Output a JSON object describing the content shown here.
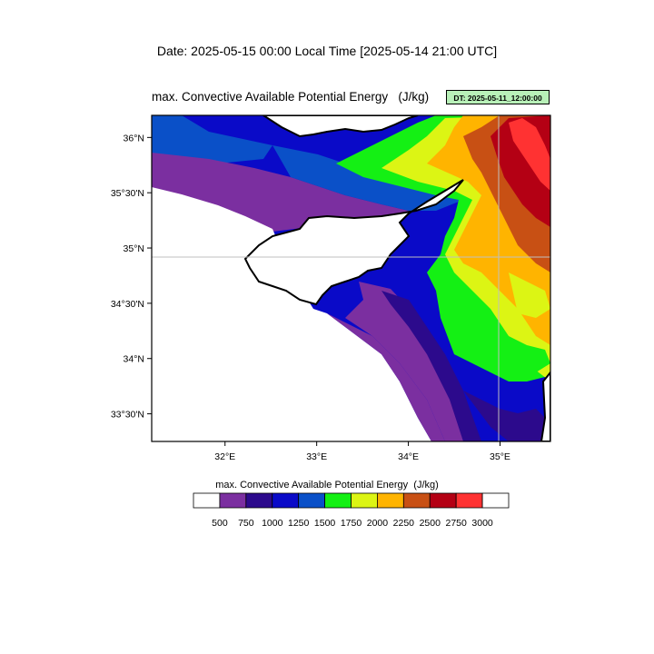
{
  "header": {
    "date_line": "Date: 2025-05-15  00:00 Local Time [2025-05-14  21:00 UTC]",
    "plot_title": "max. Convective Available Potential Energy   (J/kg)",
    "dt_badge": "DT: 2025-05-11_12:00:00"
  },
  "map": {
    "region": "Eastern Mediterranean - Cyprus",
    "lon_range": [
      31.2,
      35.55
    ],
    "lat_range": [
      33.25,
      36.2
    ],
    "lon_ticks": [
      {
        "value": 32,
        "label": "32°E"
      },
      {
        "value": 33,
        "label": "33°E"
      },
      {
        "value": 34,
        "label": "34°E"
      },
      {
        "value": 35,
        "label": "35°E"
      }
    ],
    "lat_ticks": [
      {
        "value": 36.0,
        "label": "36°N"
      },
      {
        "value": 35.5,
        "label": "35°30'N"
      },
      {
        "value": 35.0,
        "label": "35°N"
      },
      {
        "value": 34.5,
        "label": "34°30'N"
      },
      {
        "value": 34.0,
        "label": "34°N"
      },
      {
        "value": 33.5,
        "label": "33°30'N"
      }
    ],
    "gridlines": [
      {
        "lon": 35
      },
      {
        "lat": 35
      }
    ]
  },
  "legend": {
    "title": "max. Convective Available Potential Energy  (J/kg)",
    "colors": [
      "#ffffff",
      "#7b2fa0",
      "#2c0a8c",
      "#0a0ac8",
      "#0a50c8",
      "#14f014",
      "#dcf514",
      "#ffb400",
      "#c85014",
      "#b40014",
      "#ff3232",
      "#ffffff"
    ],
    "labels": [
      "500",
      "750",
      "1000",
      "1250",
      "1500",
      "1750",
      "2000",
      "2250",
      "2500",
      "2750",
      "3000"
    ]
  },
  "colors": {
    "lt500": "#ffffff",
    "c500": "#7b2fa0",
    "c750": "#2c0a8c",
    "c1000": "#0a0ac8",
    "c1250": "#0a50c8",
    "c1500": "#14f014",
    "c1750": "#dcf514",
    "c2000": "#ffb400",
    "c2250": "#c85014",
    "c2500": "#b40014",
    "c2750": "#ff3232",
    "badge_bg": "#b8f0b8"
  }
}
